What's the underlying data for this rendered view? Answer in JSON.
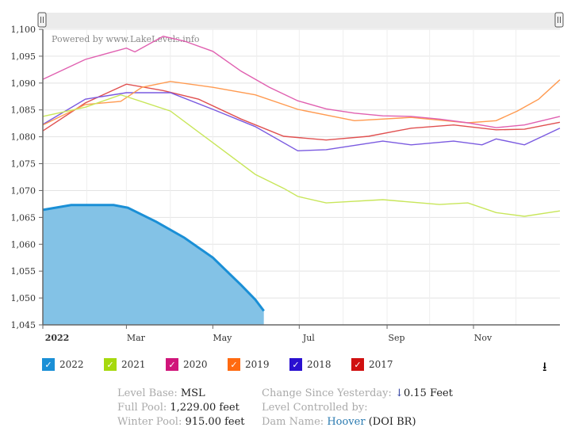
{
  "chart_data": {
    "type": "line",
    "watermark": "Powered by www.LakeLevels.info",
    "ylim": [
      1045,
      1100
    ],
    "yticks": [
      "1,100",
      "1,095",
      "1,090",
      "1,085",
      "1,080",
      "1,075",
      "1,070",
      "1,065",
      "1,060",
      "1,055",
      "1,050",
      "1,045"
    ],
    "ytick_values": [
      1100,
      1095,
      1090,
      1085,
      1080,
      1075,
      1070,
      1065,
      1060,
      1055,
      1050,
      1045
    ],
    "xticks": [
      {
        "label": "2022",
        "day": 0
      },
      {
        "label": "Mar",
        "day": 59
      },
      {
        "label": "May",
        "day": 120
      },
      {
        "label": "Jul",
        "day": 181
      },
      {
        "label": "Sep",
        "day": 243
      },
      {
        "label": "Nov",
        "day": 304
      }
    ],
    "xlabel": "",
    "ylabel": "",
    "series": [
      {
        "name": "2022",
        "color": "#1a8fd6",
        "fill": true,
        "days": [
          0,
          20,
          50,
          60,
          80,
          100,
          120,
          140,
          150,
          156
        ],
        "values": [
          1066.4,
          1067.3,
          1067.3,
          1066.8,
          1064.2,
          1061.2,
          1057.5,
          1052.4,
          1049.7,
          1047.6
        ]
      },
      {
        "name": "2021",
        "color": "#c8e65a",
        "days": [
          0,
          30,
          55,
          60,
          90,
          120,
          150,
          170,
          180,
          200,
          240,
          280,
          300,
          320,
          340,
          365
        ],
        "values": [
          1083.8,
          1085.5,
          1087.8,
          1087.4,
          1084.8,
          1078.9,
          1073,
          1070.4,
          1068.9,
          1067.7,
          1068.3,
          1067.4,
          1067.7,
          1065.9,
          1065.2,
          1066.2
        ]
      },
      {
        "name": "2020",
        "color": "#e060b0",
        "days": [
          0,
          30,
          59,
          65,
          85,
          100,
          120,
          140,
          160,
          180,
          200,
          220,
          240,
          260,
          280,
          300,
          320,
          340,
          365
        ],
        "values": [
          1090.7,
          1094.4,
          1096.5,
          1095.8,
          1098.7,
          1097.8,
          1095.9,
          1092.2,
          1089.2,
          1086.7,
          1085.2,
          1084.4,
          1083.9,
          1083.8,
          1083.3,
          1082.6,
          1081.7,
          1082.2,
          1083.8
        ]
      },
      {
        "name": "2019",
        "color": "#ff9a50",
        "days": [
          0,
          30,
          55,
          70,
          90,
          120,
          150,
          180,
          220,
          260,
          300,
          320,
          335,
          350,
          365
        ],
        "values": [
          1082.2,
          1086,
          1086.6,
          1089.2,
          1090.3,
          1089.2,
          1087.8,
          1085.1,
          1083,
          1083.6,
          1082.6,
          1083,
          1084.8,
          1087,
          1090.6
        ]
      },
      {
        "name": "2018",
        "color": "#7a5ae0",
        "days": [
          0,
          30,
          59,
          90,
          120,
          150,
          180,
          200,
          240,
          260,
          290,
          310,
          320,
          340,
          365
        ],
        "values": [
          1082.3,
          1087,
          1088.2,
          1088.2,
          1085.1,
          1081.9,
          1077.4,
          1077.6,
          1079.2,
          1078.5,
          1079.2,
          1078.5,
          1079.6,
          1078.5,
          1081.6
        ]
      },
      {
        "name": "2017",
        "color": "#e05050",
        "days": [
          0,
          30,
          59,
          85,
          110,
          140,
          170,
          200,
          230,
          260,
          290,
          320,
          340,
          365
        ],
        "values": [
          1081.1,
          1086.3,
          1089.8,
          1088.6,
          1087,
          1083.3,
          1080.1,
          1079.4,
          1080.1,
          1081.6,
          1082.2,
          1081.3,
          1081.4,
          1082.7
        ]
      }
    ]
  },
  "legend": [
    {
      "label": "2022",
      "color": "#1a8fd6"
    },
    {
      "label": "2021",
      "color": "#a6d90e"
    },
    {
      "label": "2020",
      "color": "#d0157a"
    },
    {
      "label": "2019",
      "color": "#ff6a10"
    },
    {
      "label": "2018",
      "color": "#2a10d0"
    },
    {
      "label": "2017",
      "color": "#d01010"
    }
  ],
  "check": "✓",
  "download_icon": "⭳",
  "info": {
    "level_base_k": "Level Base:",
    "level_base_v": "MSL",
    "full_pool_k": "Full Pool:",
    "full_pool_v": "1,229.00 feet",
    "winter_pool_k": "Winter Pool:",
    "winter_pool_v": "915.00 feet",
    "change_k": "Change Since Yesterday:",
    "change_arrow": "↓",
    "change_v": "0.15 Feet",
    "controlled_k": "Level Controlled by:",
    "dam_k": "Dam Name:",
    "dam_link": "Hoover",
    "dam_v": "(DOI BR)"
  }
}
